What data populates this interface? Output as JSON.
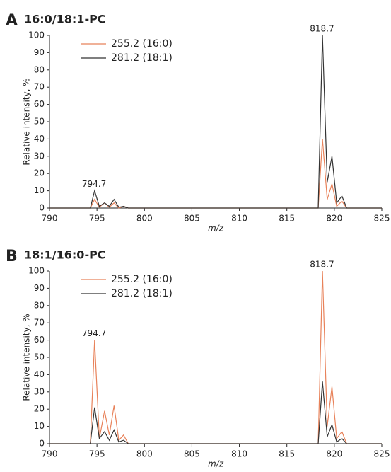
{
  "chart_data": [
    {
      "type": "line",
      "label": "A",
      "title": "16:0/18:1-PC",
      "x_label": "m/z",
      "y_label": "Relative intensity, %",
      "x": [
        790,
        794.3,
        794.75,
        795.25,
        795.8,
        796.3,
        796.8,
        797.3,
        797.8,
        798.3,
        818.3,
        818.75,
        819.25,
        819.75,
        820.25,
        820.8,
        821.3,
        825
      ],
      "series": [
        {
          "name": "255.2 (16:0)",
          "color": "#e8825a",
          "values": [
            0,
            0,
            5,
            0.5,
            3,
            0.5,
            3,
            0,
            1,
            0,
            0,
            40,
            5,
            14,
            1,
            4,
            0,
            0
          ]
        },
        {
          "name": "281.2 (18:1)",
          "color": "#333333",
          "values": [
            0,
            0,
            10,
            1,
            3,
            1,
            5,
            0.5,
            1,
            0,
            0,
            100,
            15,
            30,
            3,
            7,
            0,
            0
          ]
        }
      ],
      "annotations": [
        {
          "text": "794.7",
          "x": 794.7,
          "y": 10
        },
        {
          "text": "818.7",
          "x": 818.7,
          "y": 100
        }
      ],
      "xlim": [
        790,
        825
      ],
      "xticks": [
        790,
        795,
        800,
        805,
        810,
        815,
        820,
        825
      ],
      "ylim": [
        0,
        100
      ],
      "yticks": [
        0,
        10,
        20,
        30,
        40,
        50,
        60,
        70,
        80,
        90,
        100
      ]
    },
    {
      "type": "line",
      "label": "B",
      "title": "18:1/16:0-PC",
      "x_label": "m/z",
      "y_label": "Relative intensity, %",
      "x": [
        790,
        794.3,
        794.75,
        795.25,
        795.8,
        796.3,
        796.8,
        797.3,
        797.8,
        798.3,
        818.3,
        818.75,
        819.25,
        819.75,
        820.25,
        820.8,
        821.3,
        825
      ],
      "series": [
        {
          "name": "255.2 (16:0)",
          "color": "#e8825a",
          "values": [
            0,
            0,
            60,
            3,
            19,
            5,
            22,
            2,
            5,
            0,
            0,
            100,
            10,
            33,
            3,
            7,
            0,
            0
          ]
        },
        {
          "name": "281.2 (18:1)",
          "color": "#333333",
          "values": [
            0,
            0,
            21,
            3,
            7,
            2,
            8,
            1,
            2,
            0,
            0,
            36,
            4,
            11,
            1,
            3,
            0,
            0
          ]
        }
      ],
      "annotations": [
        {
          "text": "794.7",
          "x": 794.7,
          "y": 60
        },
        {
          "text": "818.7",
          "x": 818.7,
          "y": 100
        }
      ],
      "xlim": [
        790,
        825
      ],
      "xticks": [
        790,
        795,
        800,
        805,
        810,
        815,
        820,
        825
      ],
      "ylim": [
        0,
        100
      ],
      "yticks": [
        0,
        10,
        20,
        30,
        40,
        50,
        60,
        70,
        80,
        90,
        100
      ]
    }
  ]
}
